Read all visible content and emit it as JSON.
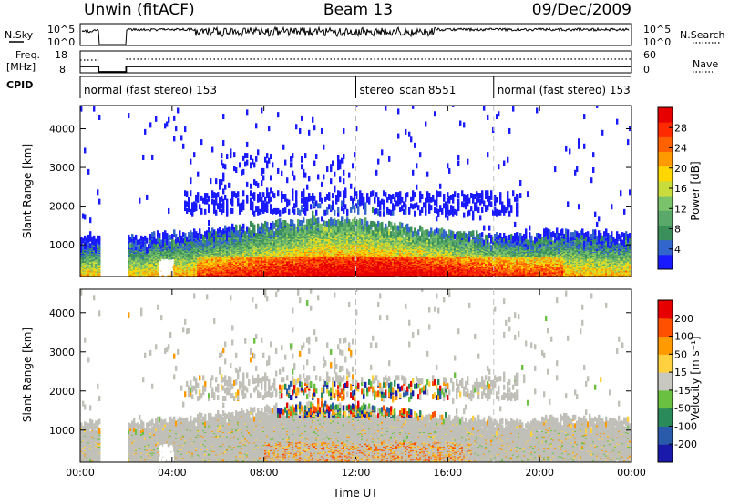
{
  "header": {
    "station": "Unwin (fitACF)",
    "beam": "Beam 13",
    "date": "09/Dec/2009"
  },
  "top_panel": {
    "nsky_label": "N.Sky",
    "nsky_ticks": [
      "10^5",
      "10^0"
    ],
    "nsearch_label": "N.Search",
    "nsearch_ticks": [
      "10^5",
      "10^0"
    ],
    "freq_label_1": "Freq.",
    "freq_label_2": "[MHz]",
    "freq_ticks": [
      "18",
      "8"
    ],
    "nave_label": "Nave",
    "nave_ticks": [
      "60",
      "0"
    ],
    "cpid_label": "CPID",
    "cpid_segments": [
      {
        "label": "normal (fast stereo) 153",
        "start_hour": 0,
        "end_hour": 12
      },
      {
        "label": "stereo_scan 8551",
        "start_hour": 12,
        "end_hour": 18
      },
      {
        "label": "normal (fast stereo) 153",
        "start_hour": 18,
        "end_hour": 24
      }
    ]
  },
  "colors": {
    "power_scale": [
      "#1a1aff",
      "#3366cc",
      "#3a8f5a",
      "#5aa86a",
      "#7ac36a",
      "#c8dc3c",
      "#ffd700",
      "#ff9a00",
      "#ff6000",
      "#ff2a00",
      "#e60000"
    ],
    "velocity_scale": [
      "#1a1aaa",
      "#2a5aaa",
      "#2a8a5a",
      "#6ac040",
      "#c8c8c0",
      "#ffd040",
      "#ff9a00",
      "#ff5000",
      "#e60000"
    ],
    "ground_scatter": "#c0c0b8",
    "dashed_line": "#c0c0c0"
  },
  "chart_data": [
    {
      "type": "heatmap",
      "name": "Power",
      "ylabel": "Slant Range [km]",
      "yticks": [
        1000,
        2000,
        3000,
        4000
      ],
      "ylim": [
        180,
        4600
      ],
      "xlim": [
        0,
        24
      ],
      "colorbar_label": "Power [dB]",
      "colorbar_ticks": [
        4,
        8,
        12,
        16,
        20,
        24,
        28
      ],
      "colorbar_range": [
        0,
        32
      ],
      "data_gap_hours": [
        [
          0.8,
          2.0
        ]
      ],
      "features": [
        {
          "desc": "E-region echo band",
          "start_hour": 0,
          "end_hour": 24,
          "range_km": [
            200,
            1000
          ],
          "peak_power_db": 30
        },
        {
          "desc": "scattered high echoes",
          "start_hour": 4,
          "end_hour": 20,
          "range_km": [
            1800,
            3000
          ],
          "peak_power_db": 8
        }
      ]
    },
    {
      "type": "heatmap",
      "name": "Velocity",
      "ylabel": "Slant Range [km]",
      "xlabel": "Time UT",
      "yticks": [
        1000,
        2000,
        3000,
        4000
      ],
      "ylim": [
        180,
        4600
      ],
      "xlim": [
        0,
        24
      ],
      "xticks": [
        "00:00",
        "04:00",
        "08:00",
        "12:00",
        "16:00",
        "20:00",
        "00:00"
      ],
      "xtick_hours": [
        0,
        4,
        8,
        12,
        16,
        20,
        24
      ],
      "colorbar_label": "Velocity [m s⁻¹]",
      "colorbar_ticks": [
        200,
        100,
        50,
        15,
        -15,
        -50,
        -100,
        -200
      ],
      "data_gap_hours": [
        [
          0.8,
          2.0
        ]
      ]
    }
  ]
}
